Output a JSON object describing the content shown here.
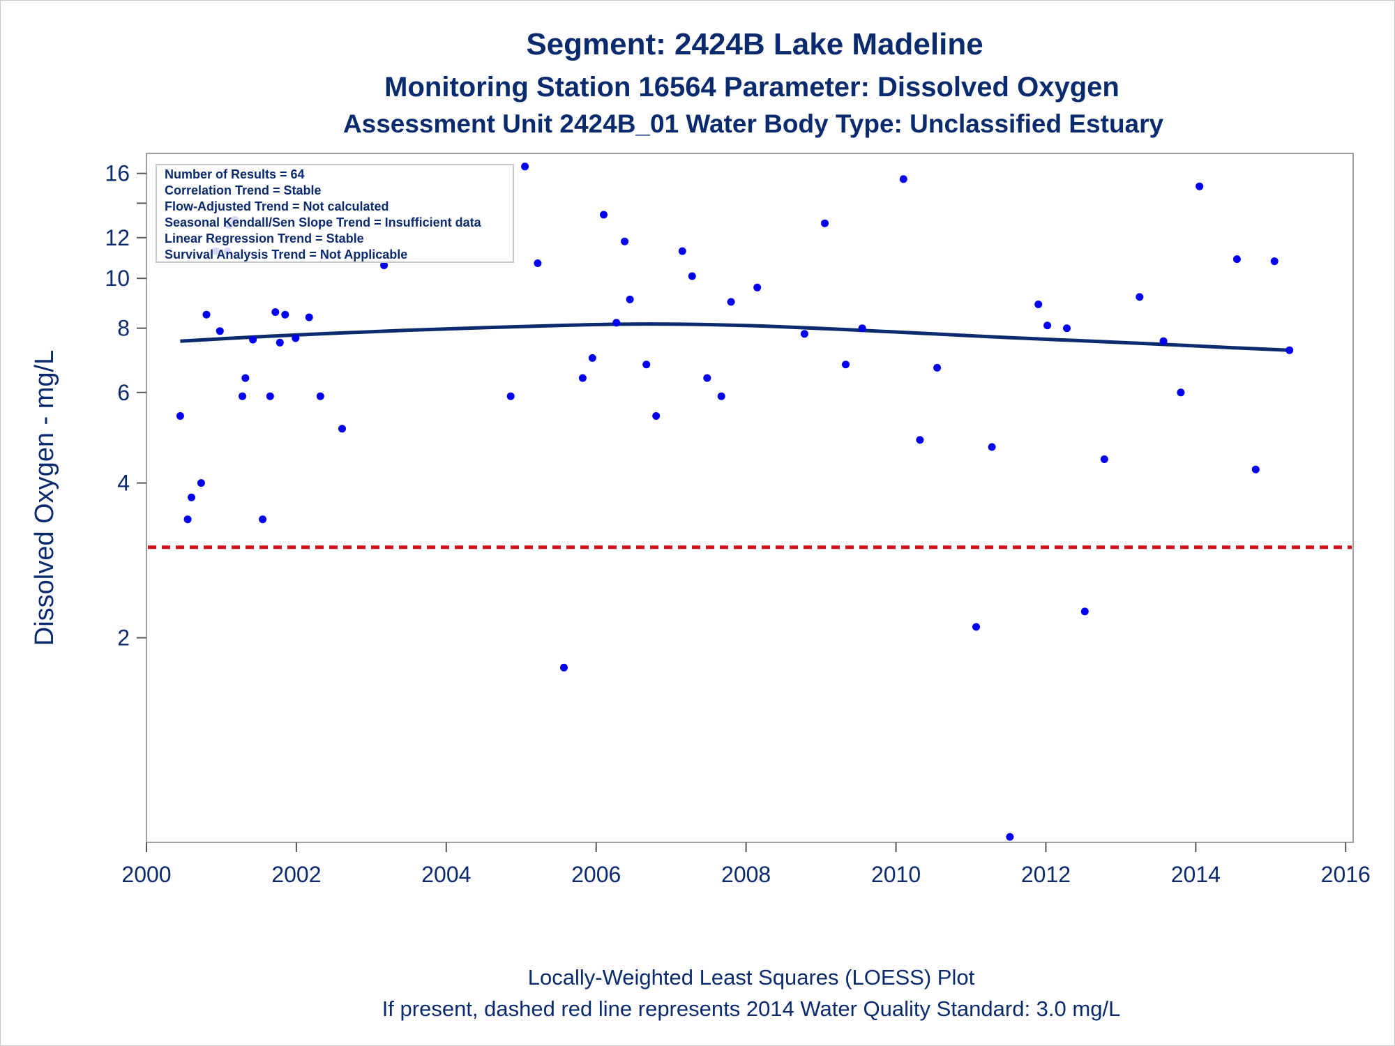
{
  "chart_data": {
    "type": "scatter",
    "title": "Segment: 2424B  Lake Madeline",
    "subtitle1": "Monitoring Station 16564 Parameter: Dissolved Oxygen",
    "subtitle2": "Assessment Unit 2424B_01   Water Body Type: Unclassified Estuary",
    "ylabel": "Dissolved Oxygen - mg/L",
    "xlabel": "",
    "y_scale": "log",
    "xlim": [
      2000,
      2016.1
    ],
    "ylim": [
      0.8,
      17.5
    ],
    "x_ticks": [
      2000,
      2002,
      2004,
      2006,
      2008,
      2010,
      2012,
      2014,
      2016
    ],
    "y_ticks": [
      2,
      4,
      6,
      8,
      10,
      12,
      16
    ],
    "y_minor_ticks": [
      14
    ],
    "grid": false,
    "stats_box": [
      "Number of Results = 64",
      "Correlation Trend = Stable",
      "Flow-Adjusted Trend = Not calculated",
      "Seasonal Kendall/Sen Slope Trend = Insufficient data",
      "Linear Regression Trend = Stable",
      "Survival Analysis Trend = Not Applicable"
    ],
    "standard_line": {
      "value": 3.0,
      "color": "#d0141e"
    },
    "loess_curve": {
      "x": [
        2000.45,
        2001.5,
        2002.5,
        2003.5,
        2004.5,
        2005.5,
        2006.5,
        2007.5,
        2008.5,
        2009.5,
        2010.5,
        2011.5,
        2012.5,
        2013.5,
        2014.5,
        2015.25
      ],
      "y": [
        7.55,
        7.7,
        7.82,
        7.93,
        8.02,
        8.1,
        8.15,
        8.13,
        8.05,
        7.93,
        7.8,
        7.67,
        7.56,
        7.45,
        7.33,
        7.25
      ]
    },
    "series": [
      {
        "x": [
          2000.45,
          2000.55,
          2000.6,
          2000.73,
          2000.8,
          2000.92,
          2000.98,
          2001.08,
          2001.1,
          2001.18,
          2001.28,
          2001.32,
          2001.42,
          2001.55,
          2001.65,
          2001.72,
          2001.78,
          2001.85,
          2001.99,
          2002.17,
          2002.32,
          2002.61,
          2003.17,
          2004.86,
          2005.05,
          2005.22,
          2005.57,
          2005.82,
          2005.95,
          2006.1,
          2006.27,
          2006.38,
          2006.45,
          2006.67,
          2006.8,
          2007.15,
          2007.28,
          2007.48,
          2007.67,
          2007.8,
          2008.15,
          2008.78,
          2009.05,
          2009.33,
          2009.55,
          2010.1,
          2010.32,
          2010.55,
          2011.07,
          2011.28,
          2011.52,
          2011.9,
          2012.02,
          2012.28,
          2012.52,
          2012.78,
          2013.25,
          2013.57,
          2013.8,
          2014.05,
          2014.55,
          2014.8,
          2015.05,
          2015.25
        ],
        "y": [
          5.4,
          3.4,
          3.75,
          4.0,
          8.5,
          11.3,
          7.9,
          11.3,
          12.7,
          13.0,
          5.9,
          6.4,
          7.6,
          3.4,
          5.9,
          8.6,
          7.5,
          8.5,
          7.65,
          8.4,
          5.9,
          5.1,
          10.6,
          5.9,
          16.5,
          10.7,
          1.75,
          6.4,
          7.0,
          13.3,
          8.2,
          11.8,
          9.1,
          6.8,
          5.4,
          11.3,
          10.1,
          6.4,
          5.9,
          9.0,
          9.6,
          7.8,
          12.8,
          6.8,
          8.0,
          15.6,
          4.85,
          6.7,
          2.1,
          4.7,
          0.82,
          8.9,
          8.1,
          8.0,
          2.25,
          4.45,
          9.2,
          7.55,
          6.0,
          15.1,
          10.9,
          4.25,
          10.8,
          7.25
        ]
      }
    ],
    "footer1": "Locally-Weighted Least Squares (LOESS) Plot",
    "footer2": "If present, dashed red line represents 2014 Water Quality Standard: 3.0 mg/L",
    "colors": {
      "text": "#0a2a6e",
      "points": "#0000ee",
      "curve": "#0b2b6e",
      "standard": "#d0141e"
    }
  }
}
